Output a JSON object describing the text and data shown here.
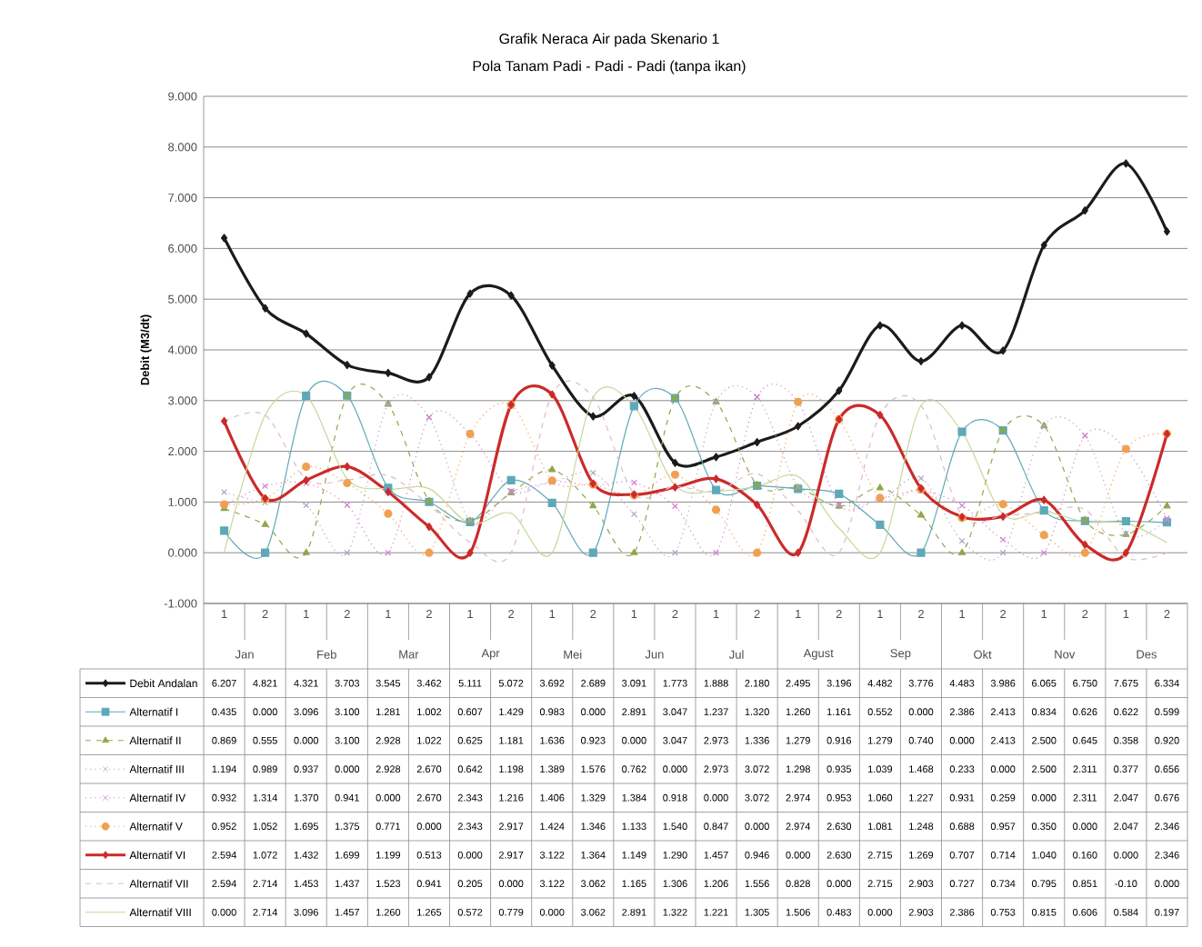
{
  "chart_data": {
    "type": "line",
    "title": "Grafik Neraca Air pada Skenario 1",
    "subtitle": "Pola Tanam Padi - Padi - Padi (tanpa ikan)",
    "ylabel": "Debit (M3/dt)",
    "categories": [
      "1",
      "2",
      "1",
      "2",
      "1",
      "2",
      "1",
      "2",
      "1",
      "2",
      "1",
      "2",
      "1",
      "2",
      "1",
      "2",
      "1",
      "2",
      "1",
      "2",
      "1",
      "2",
      "1",
      "2"
    ],
    "annotations": [
      "Jan",
      "Feb",
      "Mar",
      "Apr",
      "Mei",
      "Jun",
      "Jul",
      "Agust",
      "Sep",
      "Okt",
      "Nov",
      "Des"
    ],
    "ylim": [
      -1,
      9
    ],
    "yticks": [
      {
        "value": -1,
        "label": "-1.000"
      },
      {
        "value": 0,
        "label": "0.000"
      },
      {
        "value": 1,
        "label": "1.000"
      },
      {
        "value": 2,
        "label": "2.000"
      },
      {
        "value": 3,
        "label": "3.000"
      },
      {
        "value": 4,
        "label": "4.000"
      },
      {
        "value": 5,
        "label": "5.000"
      },
      {
        "value": 6,
        "label": "6.000"
      },
      {
        "value": 7,
        "label": "7.000"
      },
      {
        "value": 8,
        "label": "8.000"
      },
      {
        "value": 9,
        "label": "9.000"
      }
    ],
    "grid": "y",
    "legend": "bottom",
    "series": [
      {
        "name": "Debit Andalan",
        "color": "#1b1b1b",
        "marker": "diamond",
        "line_style": "solid",
        "values": [
          6.207,
          4.821,
          4.321,
          3.703,
          3.545,
          3.462,
          5.111,
          5.072,
          3.692,
          2.689,
          3.091,
          1.773,
          1.888,
          2.18,
          2.495,
          3.196,
          4.482,
          3.776,
          4.483,
          3.986,
          6.065,
          6.75,
          7.675,
          6.334
        ],
        "value_labels": [
          "6.207",
          "4.821",
          "4.321",
          "3.703",
          "3.545",
          "3.462",
          "5.111",
          "5.072",
          "3.692",
          "2.689",
          "3.091",
          "1.773",
          "1.888",
          "2.180",
          "2.495",
          "3.196",
          "4.482",
          "3.776",
          "4.483",
          "3.986",
          "6.065",
          "6.750",
          "7.675",
          "6.334"
        ]
      },
      {
        "name": "Alternatif I",
        "color": "#5fa8b8",
        "marker": "square",
        "line_style": "solid",
        "values": [
          0.435,
          0.0,
          3.096,
          3.1,
          1.281,
          1.002,
          0.607,
          1.429,
          0.983,
          0.0,
          2.891,
          3.047,
          1.237,
          1.32,
          1.26,
          1.161,
          0.552,
          0.0,
          2.386,
          2.413,
          0.834,
          0.626,
          0.622,
          0.599
        ],
        "value_labels": [
          "0.435",
          "0.000",
          "3.096",
          "3.100",
          "1.281",
          "1.002",
          "0.607",
          "1.429",
          "0.983",
          "0.000",
          "2.891",
          "3.047",
          "1.237",
          "1.320",
          "1.260",
          "1.161",
          "0.552",
          "0.000",
          "2.386",
          "2.413",
          "0.834",
          "0.626",
          "0.622",
          "0.599"
        ]
      },
      {
        "name": "Alternatif II",
        "color": "#8fa84a",
        "marker": "triangle",
        "line_style": "dashed",
        "values": [
          0.869,
          0.555,
          0.0,
          3.1,
          2.928,
          1.022,
          0.625,
          1.181,
          1.636,
          0.923,
          0.0,
          3.047,
          2.973,
          1.336,
          1.279,
          0.916,
          1.279,
          0.74,
          0.0,
          2.413,
          2.5,
          0.645,
          0.358,
          0.92
        ],
        "value_labels": [
          "0.869",
          "0.555",
          "0.000",
          "3.100",
          "2.928",
          "1.022",
          "0.625",
          "1.181",
          "1.636",
          "0.923",
          "0.000",
          "3.047",
          "2.973",
          "1.336",
          "1.279",
          "0.916",
          "1.279",
          "0.740",
          "0.000",
          "2.413",
          "2.500",
          "0.645",
          "0.358",
          "0.920"
        ]
      },
      {
        "name": "Alternatif III",
        "color": "#b3a2c7",
        "marker": "cross",
        "line_style": "dotted",
        "values": [
          1.194,
          0.989,
          0.937,
          0.0,
          2.928,
          2.67,
          0.642,
          1.198,
          1.389,
          1.576,
          0.762,
          0.0,
          2.973,
          3.072,
          1.298,
          0.935,
          1.039,
          1.468,
          0.233,
          0.0,
          2.5,
          2.311,
          0.377,
          0.656
        ],
        "value_labels": [
          "1.194",
          "0.989",
          "0.937",
          "0.000",
          "2.928",
          "2.670",
          "0.642",
          "1.198",
          "1.389",
          "1.576",
          "0.762",
          "0.000",
          "2.973",
          "3.072",
          "1.298",
          "0.935",
          "1.039",
          "1.468",
          "0.233",
          "0.000",
          "2.500",
          "2.311",
          "0.377",
          "0.656"
        ]
      },
      {
        "name": "Alternatif IV",
        "color": "#d47fd0",
        "marker": "cross",
        "line_style": "dotted",
        "values": [
          0.932,
          1.314,
          1.37,
          0.941,
          0.0,
          2.67,
          2.343,
          1.216,
          1.406,
          1.329,
          1.384,
          0.918,
          0.0,
          3.072,
          2.974,
          0.953,
          1.06,
          1.227,
          0.931,
          0.259,
          0.0,
          2.311,
          2.047,
          0.676
        ],
        "value_labels": [
          "0.932",
          "1.314",
          "1.370",
          "0.941",
          "0.000",
          "2.670",
          "2.343",
          "1.216",
          "1.406",
          "1.329",
          "1.384",
          "0.918",
          "0.000",
          "3.072",
          "2.974",
          "0.953",
          "1.060",
          "1.227",
          "0.931",
          "0.259",
          "0.000",
          "2.311",
          "2.047",
          "0.676"
        ]
      },
      {
        "name": "Alternatif V",
        "color": "#f0a050",
        "marker": "circle",
        "line_style": "dotted",
        "values": [
          0.952,
          1.052,
          1.695,
          1.375,
          0.771,
          0.0,
          2.343,
          2.917,
          1.424,
          1.346,
          1.133,
          1.54,
          0.847,
          0.0,
          2.974,
          2.63,
          1.081,
          1.248,
          0.688,
          0.957,
          0.35,
          0.0,
          2.047,
          2.346
        ],
        "value_labels": [
          "0.952",
          "1.052",
          "1.695",
          "1.375",
          "0.771",
          "0.000",
          "2.343",
          "2.917",
          "1.424",
          "1.346",
          "1.133",
          "1.540",
          "0.847",
          "0.000",
          "2.974",
          "2.630",
          "1.081",
          "1.248",
          "0.688",
          "0.957",
          "0.350",
          "0.000",
          "2.047",
          "2.346"
        ]
      },
      {
        "name": "Alternatif VI",
        "color": "#cc2a2a",
        "marker": "diamond",
        "line_style": "solid",
        "values": [
          2.594,
          1.072,
          1.432,
          1.699,
          1.199,
          0.513,
          0.0,
          2.917,
          3.122,
          1.364,
          1.149,
          1.29,
          1.457,
          0.946,
          0.0,
          2.63,
          2.715,
          1.269,
          0.707,
          0.714,
          1.04,
          0.16,
          0.0,
          2.346
        ],
        "value_labels": [
          "2.594",
          "1.072",
          "1.432",
          "1.699",
          "1.199",
          "0.513",
          "0.000",
          "2.917",
          "3.122",
          "1.364",
          "1.149",
          "1.290",
          "1.457",
          "0.946",
          "0.000",
          "2.630",
          "2.715",
          "1.269",
          "0.707",
          "0.714",
          "1.040",
          "0.160",
          "0.000",
          "2.346"
        ]
      },
      {
        "name": "Alternatif VII",
        "color": "#e0b8c8",
        "marker": "none",
        "line_style": "dashed",
        "values": [
          2.594,
          2.714,
          1.453,
          1.437,
          1.523,
          0.941,
          0.205,
          0.0,
          3.122,
          3.062,
          1.165,
          1.306,
          1.206,
          1.556,
          0.828,
          0.0,
          2.715,
          2.903,
          0.727,
          0.734,
          0.795,
          0.851,
          -0.1,
          0.0
        ],
        "value_labels": [
          "2.594",
          "2.714",
          "1.453",
          "1.437",
          "1.523",
          "0.941",
          "0.205",
          "0.000",
          "3.122",
          "3.062",
          "1.165",
          "1.306",
          "1.206",
          "1.556",
          "0.828",
          "0.000",
          "2.715",
          "2.903",
          "0.727",
          "0.734",
          "0.795",
          "0.851",
          "-0.10",
          "0.000"
        ]
      },
      {
        "name": "Alternatif VIII",
        "color": "#c4d89a",
        "marker": "none",
        "line_style": "solid",
        "values": [
          0.0,
          2.714,
          3.096,
          1.457,
          1.26,
          1.265,
          0.572,
          0.779,
          0.0,
          3.062,
          2.891,
          1.322,
          1.221,
          1.305,
          1.506,
          0.483,
          0.0,
          2.903,
          2.386,
          0.753,
          0.815,
          0.606,
          0.584,
          0.197
        ],
        "value_labels": [
          "0.000",
          "2.714",
          "3.096",
          "1.457",
          "1.260",
          "1.265",
          "0.572",
          "0.779",
          "0.000",
          "3.062",
          "2.891",
          "1.322",
          "1.221",
          "1.305",
          "1.506",
          "0.483",
          "0.000",
          "2.903",
          "2.386",
          "0.753",
          "0.815",
          "0.606",
          "0.584",
          "0.197"
        ]
      }
    ]
  }
}
